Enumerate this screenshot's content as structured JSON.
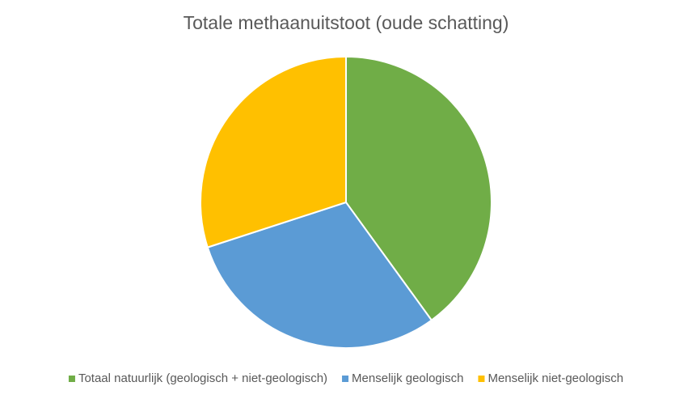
{
  "chart_data": {
    "type": "pie",
    "title": "Totale methaanuitstoot (oude schatting)",
    "categories": [
      "Totaal natuurlijk (geologisch + niet-geologisch)",
      "Menselijk geologisch",
      "Menselijk niet-geologisch"
    ],
    "values": [
      40,
      30,
      30
    ],
    "colors": [
      "#70ad47",
      "#5b9bd5",
      "#ffc000"
    ],
    "legend": "bottom"
  }
}
